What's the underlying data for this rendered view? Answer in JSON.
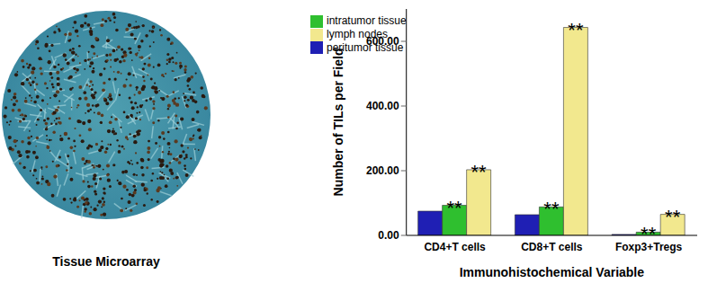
{
  "image": {
    "caption": "Tissue Microarray"
  },
  "chart_data": {
    "type": "bar",
    "categories": [
      "CD4+T cells",
      "CD8+T cells",
      "Foxp3+Tregs"
    ],
    "series": [
      {
        "name": "peritumor tissue",
        "color": "#1f1fb4",
        "values": [
          75,
          64,
          3
        ]
      },
      {
        "name": "intratumor tissue",
        "color": "#2fbf2f",
        "values": [
          93,
          88,
          10
        ]
      },
      {
        "name": "lymph nodes",
        "color": "#f2e88e",
        "values": [
          203,
          643,
          65
        ]
      }
    ],
    "x_label": "Immunohistochemical Variable",
    "y_label": "Number of TILs per Field",
    "ylim": [
      0,
      700
    ],
    "yticks": [
      {
        "value": 0,
        "label": "0.00"
      },
      {
        "value": 200,
        "label": "200.00"
      },
      {
        "value": 400,
        "label": "400.00"
      },
      {
        "value": 600,
        "label": "600.00"
      }
    ],
    "grid": false,
    "legend": "upper left",
    "annotations": [
      {
        "text": "**",
        "category": "CD4+T cells",
        "series": "intratumor tissue"
      },
      {
        "text": "**",
        "category": "CD4+T cells",
        "series": "lymph nodes"
      },
      {
        "text": "**",
        "category": "CD8+T cells",
        "series": "intratumor tissue"
      },
      {
        "text": "**",
        "category": "CD8+T cells",
        "series": "lymph nodes"
      },
      {
        "text": "**",
        "category": "Foxp3+Tregs",
        "series": "intratumor tissue"
      },
      {
        "text": "**",
        "category": "Foxp3+Tregs",
        "series": "lymph nodes"
      }
    ]
  }
}
